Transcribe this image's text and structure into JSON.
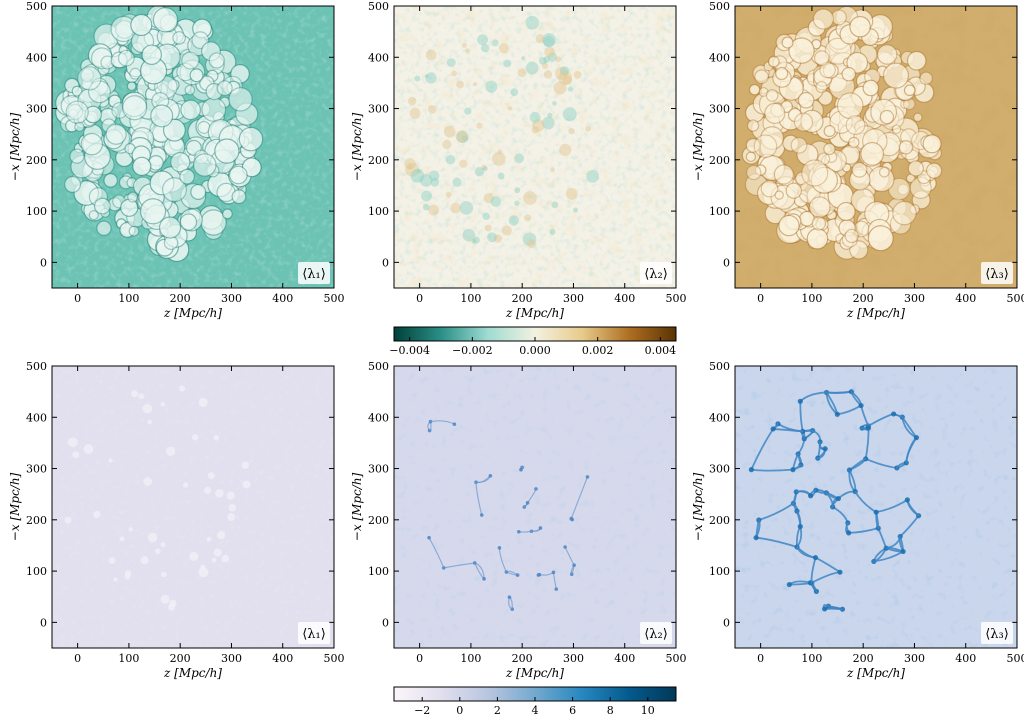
{
  "chart_data": [
    {
      "type": "heatmap",
      "panel": "top-left",
      "badge": "⟨λ₁⟩",
      "xlabel": "z [Mpc/h]",
      "ylabel": "−x [Mpc/h]",
      "xlim": [
        -50,
        500
      ],
      "ylim": [
        -50,
        500
      ],
      "xticks": [
        0,
        100,
        200,
        300,
        400,
        500
      ],
      "yticks": [
        0,
        100,
        200,
        300,
        400,
        500
      ],
      "colormap": "BrBG_r",
      "dominant_color": "#6cc3b4",
      "texture": "cellular"
    },
    {
      "type": "heatmap",
      "panel": "top-middle",
      "badge": "⟨λ₂⟩",
      "xlabel": "z [Mpc/h]",
      "ylabel": "−x [Mpc/h]",
      "xlim": [
        -50,
        500
      ],
      "ylim": [
        -50,
        500
      ],
      "xticks": [
        0,
        100,
        200,
        300,
        400,
        500
      ],
      "yticks": [
        0,
        100,
        200,
        300,
        400,
        500
      ],
      "colormap": "BrBG_r",
      "dominant_color": "#f4f1e6",
      "texture": "noise"
    },
    {
      "type": "heatmap",
      "panel": "top-right",
      "badge": "⟨λ₃⟩",
      "xlabel": "z [Mpc/h]",
      "ylabel": "−x [Mpc/h]",
      "xlim": [
        -50,
        500
      ],
      "ylim": [
        -50,
        500
      ],
      "xticks": [
        0,
        100,
        200,
        300,
        400,
        500
      ],
      "yticks": [
        0,
        100,
        200,
        300,
        400,
        500
      ],
      "colormap": "BrBG_r",
      "dominant_color": "#d2ae6e",
      "texture": "cellular"
    },
    {
      "type": "heatmap",
      "panel": "bottom-left",
      "badge": "⟨λ₁⟩",
      "xlabel": "z [Mpc/h]",
      "ylabel": "−x [Mpc/h]",
      "xlim": [
        -50,
        500
      ],
      "ylim": [
        -50,
        500
      ],
      "xticks": [
        0,
        100,
        200,
        300,
        400,
        500
      ],
      "yticks": [
        0,
        100,
        200,
        300,
        400,
        500
      ],
      "colormap": "PuBu",
      "dominant_color": "#e2e0ef",
      "texture": "smooth"
    },
    {
      "type": "heatmap",
      "panel": "bottom-middle",
      "badge": "⟨λ₂⟩",
      "xlabel": "z [Mpc/h]",
      "ylabel": "−x [Mpc/h]",
      "xlim": [
        -50,
        500
      ],
      "ylim": [
        -50,
        500
      ],
      "xticks": [
        0,
        100,
        200,
        300,
        400,
        500
      ],
      "yticks": [
        0,
        100,
        200,
        300,
        400,
        500
      ],
      "colormap": "PuBu",
      "dominant_color": "#d6d9ec",
      "texture": "filaments-sparse"
    },
    {
      "type": "heatmap",
      "panel": "bottom-right",
      "badge": "⟨λ₃⟩",
      "xlabel": "z [Mpc/h]",
      "ylabel": "−x [Mpc/h]",
      "xlim": [
        -50,
        500
      ],
      "ylim": [
        -50,
        500
      ],
      "xticks": [
        0,
        100,
        200,
        300,
        400,
        500
      ],
      "yticks": [
        0,
        100,
        200,
        300,
        400,
        500
      ],
      "colormap": "PuBu",
      "dominant_color": "#cad6ec",
      "texture": "filaments-dense"
    }
  ],
  "colorbars": [
    {
      "row": "top",
      "colormap": "BrBG_r",
      "range": [
        -0.0045,
        0.0045
      ],
      "ticks": [
        -0.004,
        -0.002,
        0.0,
        0.002,
        0.004
      ],
      "tick_labels": [
        "−0.004",
        "−0.002",
        "0.000",
        "0.002",
        "0.004"
      ],
      "stops": [
        "#01403a",
        "#2a8f86",
        "#9fdcd2",
        "#f3f1e1",
        "#e8cb8c",
        "#ae6f22",
        "#5a3304"
      ]
    },
    {
      "row": "bottom",
      "colormap": "PuBu",
      "range": [
        -3.5,
        11.5
      ],
      "ticks": [
        -2,
        0,
        2,
        4,
        6,
        8,
        10
      ],
      "tick_labels": [
        "−2",
        "0",
        "2",
        "4",
        "6",
        "8",
        "10"
      ],
      "stops": [
        "#fbf6fb",
        "#e2dfee",
        "#b8c6e0",
        "#74a9cf",
        "#2787c0",
        "#045a8d",
        "#023858"
      ]
    }
  ]
}
